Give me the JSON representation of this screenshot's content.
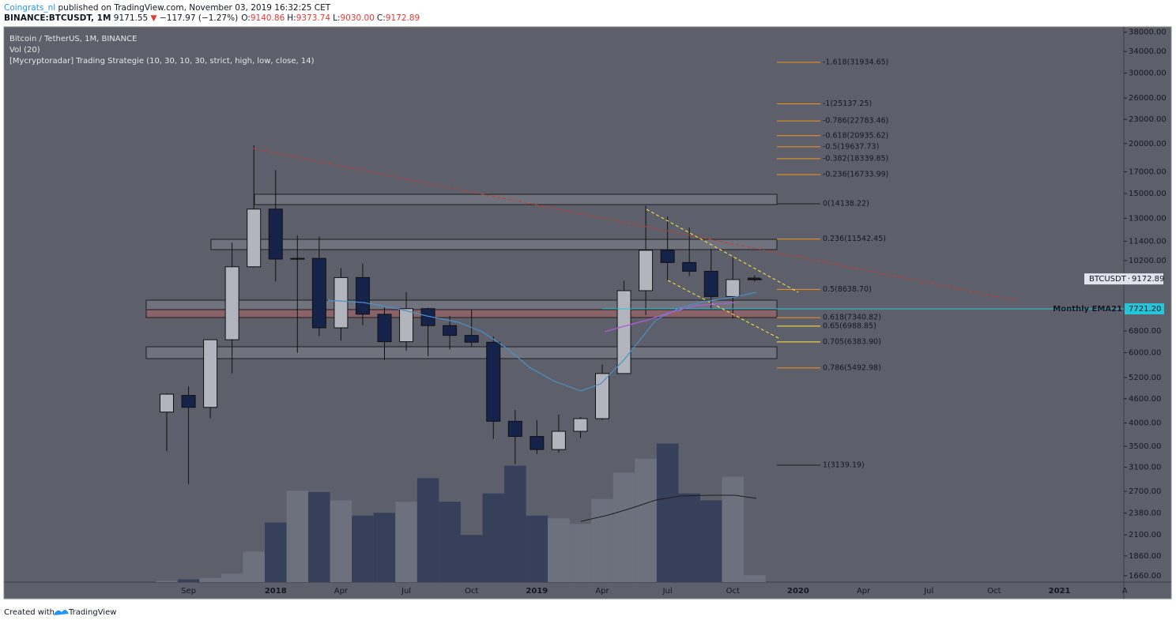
{
  "header": {
    "author": "Coingrats_nl",
    "published": "published on TradingView.com, November 03, 2019 16:32:25 CET",
    "symbol": "BINANCE:BTCUSDT, 1M",
    "price": "9171.55",
    "arrow": "▼",
    "change": "−117.97 (−1.27%)",
    "ohlc": [
      [
        "O:",
        "9140.86"
      ],
      [
        "H:",
        "9373.74"
      ],
      [
        "L:",
        "9030.00"
      ],
      [
        "C:",
        "9172.89"
      ]
    ]
  },
  "legend": [
    "Bitcoin / TetherUS, 1M, BINANCE",
    "Vol (20)",
    "[Mycryptoradar] Trading Strategie (10, 30, 10, 30, strict, high, low, close, 14)"
  ],
  "footer": {
    "created": "Created with",
    "brand": "TradingView"
  },
  "chart_data": {
    "type": "candlestick",
    "log_scale": true,
    "symbol": "BTCUSDT",
    "categories": [
      null,
      "Sep",
      null,
      null,
      null,
      "2018",
      null,
      null,
      "Apr",
      null,
      null,
      "Jul",
      null,
      null,
      "Oct",
      null,
      null,
      "2019",
      null,
      null,
      "Apr",
      null,
      null,
      "Jul",
      null,
      null,
      "Oct",
      null,
      null,
      "2020",
      null,
      null,
      "Apr",
      null,
      null,
      "Jul",
      null,
      null,
      "Oct",
      null,
      null,
      "2021",
      null,
      null,
      "A"
    ],
    "open": [
      4261,
      4690,
      4378,
      6463,
      9838,
      13716,
      10285,
      10326,
      6922,
      9246,
      7485,
      6391,
      7730,
      7011,
      6626,
      6370,
      4041,
      3702,
      3434,
      3814,
      4103,
      5320,
      8574,
      10818,
      10082,
      9588,
      8289,
      9140.86,
      null,
      null,
      null,
      null,
      null,
      null,
      null,
      null,
      null,
      null,
      null,
      null,
      null,
      null,
      null,
      null,
      null
    ],
    "high": [
      4745,
      4939,
      6470,
      11300,
      19798,
      17176,
      11786,
      11710,
      9759,
      10020,
      7786,
      8507,
      7770,
      7410,
      7680,
      6590,
      4312,
      4069,
      4198,
      4140,
      5600,
      9074,
      13971,
      13147,
      12325,
      10905,
      10370,
      9373.74,
      null,
      null,
      null,
      null,
      null,
      null,
      null,
      null,
      null,
      null,
      null,
      null,
      null,
      null,
      null,
      null,
      null
    ],
    "low": [
      3400,
      2817,
      4110,
      5325,
      9800,
      9035,
      6000,
      6600,
      6430,
      7032,
      5755,
      6070,
      5880,
      6111,
      6205,
      3652,
      3156,
      3349,
      3373,
      3670,
      4067,
      5320,
      7444,
      9071,
      9320,
      7710,
      7300,
      9030,
      null,
      null,
      null,
      null,
      null,
      null,
      null,
      null,
      null,
      null,
      null,
      null,
      null,
      null,
      null,
      null,
      null
    ],
    "close": [
      4724,
      4378,
      6463,
      9838,
      13716,
      10285,
      10326,
      6923,
      9246,
      7485,
      6390,
      7730,
      7011,
      6626,
      6371,
      4041,
      3702,
      3434,
      3814,
      4103,
      5320,
      8574,
      10818,
      10082,
      9588,
      8289,
      9140,
      9172.89,
      null,
      null,
      null,
      null,
      null,
      null,
      null,
      null,
      null,
      null,
      null,
      null,
      null,
      null,
      null,
      null,
      null
    ],
    "volume": [
      10,
      20,
      30,
      60,
      220,
      430,
      660,
      650,
      590,
      480,
      500,
      580,
      750,
      580,
      340,
      640,
      840,
      480,
      460,
      420,
      600,
      790,
      890,
      1000,
      640,
      590,
      760,
      50,
      null,
      null,
      null,
      null,
      null,
      null,
      null,
      null,
      null,
      null,
      null,
      null,
      null,
      null,
      null,
      null,
      null
    ],
    "up_color": "#b2b5be",
    "down_color": "#15224a",
    "volume_up_color": "#6d717d",
    "volume_down_color": "#37405a",
    "ylim": [
      1600,
      39000
    ],
    "y2lim": [
      0,
      4000
    ],
    "yticks": [
      {
        "value": 38000,
        "label": "38000.00"
      },
      {
        "value": 34000,
        "label": "34000.00"
      },
      {
        "value": 30000,
        "label": "30000.00"
      },
      {
        "value": 26000,
        "label": "26000.00"
      },
      {
        "value": 23000,
        "label": "23000.00"
      },
      {
        "value": 20000,
        "label": "20000.00"
      },
      {
        "value": 17000,
        "label": "17000.00"
      },
      {
        "value": 15000,
        "label": "15000.00"
      },
      {
        "value": 13000,
        "label": "13000.00"
      },
      {
        "value": 11400,
        "label": "11400.00"
      },
      {
        "value": 10200,
        "label": "10200.00"
      },
      {
        "value": 6800,
        "label": "6800.00"
      },
      {
        "value": 6000,
        "label": "6000.00"
      },
      {
        "value": 5200,
        "label": "5200.00"
      },
      {
        "value": 4600,
        "label": "4600.00"
      },
      {
        "value": 4000,
        "label": "4000.00"
      },
      {
        "value": 3500,
        "label": "3500.00"
      },
      {
        "value": 3100,
        "label": "3100.00"
      },
      {
        "value": 2700,
        "label": "2700.00"
      },
      {
        "value": 2380,
        "label": "2380.00"
      },
      {
        "value": 2100,
        "label": "2100.00"
      },
      {
        "value": 1860,
        "label": "1860.00"
      },
      {
        "value": 1660,
        "label": "1660.00"
      }
    ],
    "last_price": {
      "value": 9172.89,
      "label": "9172.89"
    },
    "ema": {
      "name": "Monthly EMA21",
      "value": 7721.2,
      "label": "7721.20",
      "color": "#26c6da"
    },
    "fib_levels": [
      {
        "label": "-1.618(31934.65)",
        "value": 31934.65,
        "color": "#f7931a"
      },
      {
        "label": "-1(25137.25)",
        "value": 25137.25,
        "color": "#f7931a"
      },
      {
        "label": "-0.786(22783.46)",
        "value": 22783.46,
        "color": "#f7931a"
      },
      {
        "label": "-0.618(20935.62)",
        "value": 20935.62,
        "color": "#f7931a"
      },
      {
        "label": "-0.5(19637.73)",
        "value": 19637.73,
        "color": "#f7931a"
      },
      {
        "label": "-0.382(18339.85)",
        "value": 18339.85,
        "color": "#f7931a"
      },
      {
        "label": "-0.236(16733.99)",
        "value": 16733.99,
        "color": "#f7931a"
      },
      {
        "label": "0(14138.22)",
        "value": 14138.22,
        "color": "#1e1e1e"
      },
      {
        "label": "0.236(11542.45)",
        "value": 11542.45,
        "color": "#f7931a"
      },
      {
        "label": "0.5(8638.70)",
        "value": 8638.7,
        "color": "#f7931a"
      },
      {
        "label": "0.618(7340.82)",
        "value": 7340.82,
        "color": "#f7931a"
      },
      {
        "label": "0.65(6988.85)",
        "value": 6988.85,
        "color": "#ffeb3b"
      },
      {
        "label": "0.705(6383.90)",
        "value": 6383.9,
        "color": "#ffeb3b"
      },
      {
        "label": "0.786(5492.98)",
        "value": 5492.98,
        "color": "#f7931a"
      },
      {
        "label": "1(3139.19)",
        "value": 3139.19,
        "color": "#1e1e1e"
      }
    ]
  }
}
